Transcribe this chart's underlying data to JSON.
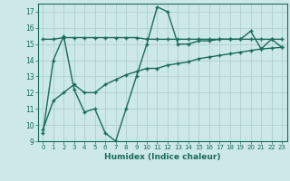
{
  "line1_x": [
    0,
    1,
    2,
    3,
    4,
    5,
    6,
    7,
    8,
    9,
    10,
    11,
    12,
    13,
    14,
    15,
    16,
    17,
    18,
    19,
    20,
    21,
    22,
    23
  ],
  "line1_y": [
    9.5,
    14.0,
    15.5,
    12.2,
    10.8,
    11.0,
    9.5,
    9.0,
    11.0,
    13.0,
    15.0,
    17.3,
    17.0,
    15.0,
    15.0,
    15.2,
    15.2,
    15.3,
    15.3,
    15.3,
    15.8,
    14.7,
    15.3,
    14.8
  ],
  "line2_x": [
    0,
    1,
    2,
    3,
    4,
    5,
    6,
    7,
    8,
    9,
    10,
    11,
    12,
    13,
    14,
    15,
    16,
    17,
    18,
    19,
    20,
    21,
    22,
    23
  ],
  "line2_y": [
    15.3,
    15.3,
    15.4,
    15.4,
    15.4,
    15.4,
    15.4,
    15.4,
    15.4,
    15.4,
    15.3,
    15.3,
    15.3,
    15.3,
    15.3,
    15.3,
    15.3,
    15.3,
    15.3,
    15.3,
    15.3,
    15.3,
    15.3,
    15.3
  ],
  "line3_x": [
    0,
    1,
    2,
    3,
    4,
    5,
    6,
    7,
    8,
    9,
    10,
    11,
    12,
    13,
    14,
    15,
    16,
    17,
    18,
    19,
    20,
    21,
    22,
    23
  ],
  "line3_y": [
    9.7,
    11.5,
    12.0,
    12.5,
    12.0,
    12.0,
    12.5,
    12.8,
    13.1,
    13.3,
    13.5,
    13.5,
    13.7,
    13.8,
    13.9,
    14.1,
    14.2,
    14.3,
    14.4,
    14.5,
    14.6,
    14.7,
    14.75,
    14.8
  ],
  "color": "#1a6b5a",
  "bg_color": "#cce8e8",
  "grid_color": "#b0d0d0",
  "xlabel": "Humidex (Indice chaleur)",
  "xlim": [
    -0.5,
    23.5
  ],
  "ylim": [
    9,
    17.5
  ],
  "yticks": [
    9,
    10,
    11,
    12,
    13,
    14,
    15,
    16,
    17
  ],
  "xticks": [
    0,
    1,
    2,
    3,
    4,
    5,
    6,
    7,
    8,
    9,
    10,
    11,
    12,
    13,
    14,
    15,
    16,
    17,
    18,
    19,
    20,
    21,
    22,
    23
  ],
  "markersize": 2.5,
  "linewidth": 1.0
}
